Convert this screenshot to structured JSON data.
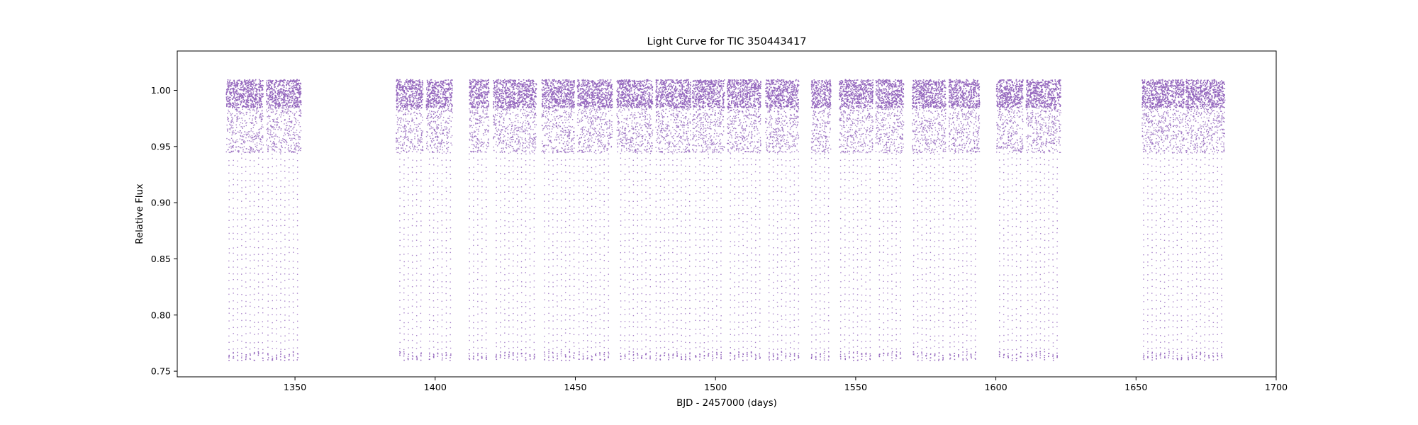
{
  "chart_data": {
    "type": "scatter",
    "title": "Light Curve for TIC 350443417",
    "xlabel": "BJD - 2457000 (days)",
    "ylabel": "Relative Flux",
    "xlim": [
      1308,
      1700
    ],
    "ylim": [
      0.745,
      1.035
    ],
    "xticks": [
      1350,
      1400,
      1450,
      1500,
      1550,
      1600,
      1650,
      1700
    ],
    "xtick_labels": [
      "1350",
      "1400",
      "1450",
      "1500",
      "1550",
      "1600",
      "1650",
      "1700"
    ],
    "yticks": [
      0.75,
      0.8,
      0.85,
      0.9,
      0.95,
      1.0
    ],
    "ytick_labels": [
      "0.75",
      "0.80",
      "0.85",
      "0.90",
      "0.95",
      "1.00"
    ],
    "grid": false,
    "marker_color": "#9467bd",
    "baseline_flux": 1.0,
    "baseline_scatter": [
      0.985,
      1.01
    ],
    "eclipse_depth_min": 0.76,
    "eclipse_shallow_limit": 0.945,
    "eclipse_period_days": 1.5,
    "observing_segments": [
      {
        "start": 1325.3,
        "end": 1338.5
      },
      {
        "start": 1339.6,
        "end": 1352.0
      },
      {
        "start": 1385.9,
        "end": 1395.5
      },
      {
        "start": 1396.6,
        "end": 1406.0
      },
      {
        "start": 1412.0,
        "end": 1419.0
      },
      {
        "start": 1420.6,
        "end": 1436.0
      },
      {
        "start": 1437.9,
        "end": 1449.5
      },
      {
        "start": 1450.5,
        "end": 1463.0
      },
      {
        "start": 1464.6,
        "end": 1477.5
      },
      {
        "start": 1478.5,
        "end": 1491.0
      },
      {
        "start": 1491.6,
        "end": 1503.0
      },
      {
        "start": 1504.0,
        "end": 1516.0
      },
      {
        "start": 1517.6,
        "end": 1529.5
      },
      {
        "start": 1534.0,
        "end": 1541.0
      },
      {
        "start": 1544.0,
        "end": 1556.0
      },
      {
        "start": 1557.0,
        "end": 1567.0
      },
      {
        "start": 1570.0,
        "end": 1582.0
      },
      {
        "start": 1583.0,
        "end": 1594.0
      },
      {
        "start": 1600.0,
        "end": 1609.5
      },
      {
        "start": 1610.5,
        "end": 1623.0
      },
      {
        "start": 1652.0,
        "end": 1667.0
      },
      {
        "start": 1667.5,
        "end": 1681.5
      }
    ]
  }
}
